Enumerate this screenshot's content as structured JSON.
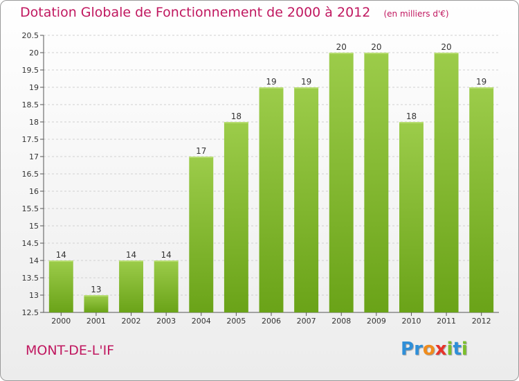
{
  "colors": {
    "title": "#c0175f",
    "bar_light": "#9ccc4a",
    "bar_dark": "#6aa318",
    "grid": "#d0d0d0",
    "axis": "#555555",
    "text": "#333333"
  },
  "header": {
    "title": "Dotation Globale de Fonctionnement de 2000 à 2012",
    "unit": "(en milliers d'€)"
  },
  "footer": {
    "commune": "MONT-DE-L'IF",
    "logo_letters": [
      {
        "ch": "P",
        "color": "#2f8fd8"
      },
      {
        "ch": "r",
        "color": "#2f8fd8"
      },
      {
        "ch": "o",
        "color": "#f08c1c"
      },
      {
        "ch": "x",
        "color": "#e8332a"
      },
      {
        "ch": "i",
        "color": "#7bbf2a"
      },
      {
        "ch": "t",
        "color": "#2f8fd8"
      },
      {
        "ch": "i",
        "color": "#7bbf2a"
      }
    ]
  },
  "chart_data": {
    "type": "bar",
    "title": "Dotation Globale de Fonctionnement de 2000 à 2012",
    "ylabel": "",
    "xlabel": "",
    "categories": [
      "2000",
      "2001",
      "2002",
      "2003",
      "2004",
      "2005",
      "2006",
      "2007",
      "2008",
      "2009",
      "2010",
      "2011",
      "2012"
    ],
    "values": [
      14,
      13,
      14,
      14,
      17,
      18,
      19,
      19,
      20,
      20,
      18,
      20,
      19
    ],
    "ylim": [
      12.5,
      20.5
    ],
    "yticks": [
      12.5,
      13,
      13.5,
      14,
      14.5,
      15,
      15.5,
      16,
      16.5,
      17,
      17.5,
      18,
      18.5,
      19,
      19.5,
      20,
      20.5
    ],
    "grid": true,
    "legend": "none"
  }
}
